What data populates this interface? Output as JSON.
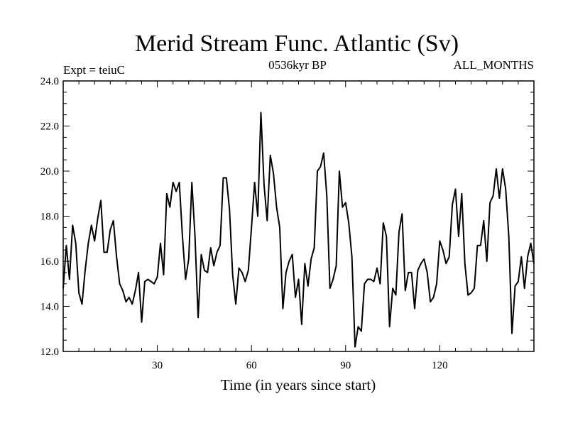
{
  "chart_data": {
    "type": "line",
    "title": "Merid Stream Func. Atlantic (Sv)",
    "subtitle_left": "Expt = teiuC",
    "subtitle_center": "0536kyr BP",
    "subtitle_right": "ALL_MONTHS",
    "xlabel": "Time (in years since start)",
    "ylabel": "",
    "xlim": [
      0,
      150
    ],
    "ylim": [
      12,
      24
    ],
    "xticks": [
      30,
      60,
      90,
      120
    ],
    "xtick_labels": [
      "30",
      "60",
      "90",
      "120"
    ],
    "yticks": [
      12,
      14,
      16,
      18,
      20,
      22,
      24
    ],
    "ytick_labels": [
      "12.0",
      "14.0",
      "16.0",
      "18.0",
      "20.0",
      "22.0",
      "24.0"
    ],
    "x_minor_step": 5,
    "y_minor_step": 0.5,
    "grid": false,
    "line_color": "#000000",
    "series": [
      {
        "name": "Merid Stream Func. Atlantic",
        "x": [
          0,
          1,
          2,
          3,
          4,
          5,
          6,
          7,
          8,
          9,
          10,
          11,
          12,
          13,
          14,
          15,
          16,
          17,
          18,
          19,
          20,
          21,
          22,
          23,
          24,
          25,
          26,
          27,
          28,
          29,
          30,
          31,
          32,
          33,
          34,
          35,
          36,
          37,
          38,
          39,
          40,
          41,
          42,
          43,
          44,
          45,
          46,
          47,
          48,
          49,
          50,
          51,
          52,
          53,
          54,
          55,
          56,
          57,
          58,
          59,
          60,
          61,
          62,
          63,
          64,
          65,
          66,
          67,
          68,
          69,
          70,
          71,
          72,
          73,
          74,
          75,
          76,
          77,
          78,
          79,
          80,
          81,
          82,
          83,
          84,
          85,
          86,
          87,
          88,
          89,
          90,
          91,
          92,
          93,
          94,
          95,
          96,
          97,
          98,
          99,
          100,
          101,
          102,
          103,
          104,
          105,
          106,
          107,
          108,
          109,
          110,
          111,
          112,
          113,
          114,
          115,
          116,
          117,
          118,
          119,
          120,
          121,
          122,
          123,
          124,
          125,
          126,
          127,
          128,
          129,
          130,
          131,
          132,
          133,
          134,
          135,
          136,
          137,
          138,
          139,
          140,
          141,
          142,
          143,
          144,
          145,
          146,
          147,
          148,
          149,
          150
        ],
        "values": [
          14.8,
          16.7,
          15.2,
          17.6,
          16.8,
          14.6,
          14.1,
          15.6,
          16.8,
          17.6,
          16.9,
          17.9,
          18.7,
          16.4,
          16.4,
          17.4,
          17.8,
          16.2,
          15.0,
          14.7,
          14.2,
          14.4,
          14.1,
          14.7,
          15.5,
          13.3,
          15.1,
          15.2,
          15.1,
          15.0,
          15.3,
          16.8,
          15.4,
          19.0,
          18.4,
          19.5,
          19.1,
          19.5,
          17.1,
          15.2,
          16.1,
          19.5,
          17.1,
          13.5,
          16.3,
          15.6,
          15.5,
          16.6,
          15.8,
          16.4,
          16.7,
          19.7,
          19.7,
          18.3,
          15.4,
          14.1,
          15.7,
          15.5,
          15.1,
          15.6,
          17.5,
          19.5,
          18.0,
          22.6,
          19.4,
          17.8,
          20.7,
          19.9,
          18.4,
          17.5,
          13.9,
          15.5,
          16.0,
          16.3,
          14.4,
          15.2,
          13.2,
          15.9,
          14.9,
          16.1,
          16.6,
          20.0,
          20.2,
          20.8,
          18.9,
          14.8,
          15.2,
          15.8,
          20.0,
          18.4,
          18.6,
          17.7,
          16.2,
          12.2,
          13.1,
          12.9,
          15.0,
          15.2,
          15.2,
          15.1,
          15.7,
          15.0,
          17.7,
          17.1,
          13.1,
          14.8,
          14.5,
          17.3,
          18.1,
          14.7,
          15.5,
          15.5,
          13.9,
          15.6,
          15.9,
          16.1,
          15.5,
          14.2,
          14.4,
          15.0,
          16.9,
          16.5,
          15.9,
          16.2,
          18.5,
          19.2,
          17.1,
          19.0,
          15.9,
          14.5,
          14.6,
          14.8,
          16.7,
          16.7,
          17.8,
          16.0,
          18.6,
          18.9,
          20.1,
          18.8,
          20.1,
          19.2,
          17.1,
          12.8,
          14.9,
          15.1,
          16.2,
          14.8,
          16.2,
          16.8,
          15.9
        ]
      }
    ]
  }
}
